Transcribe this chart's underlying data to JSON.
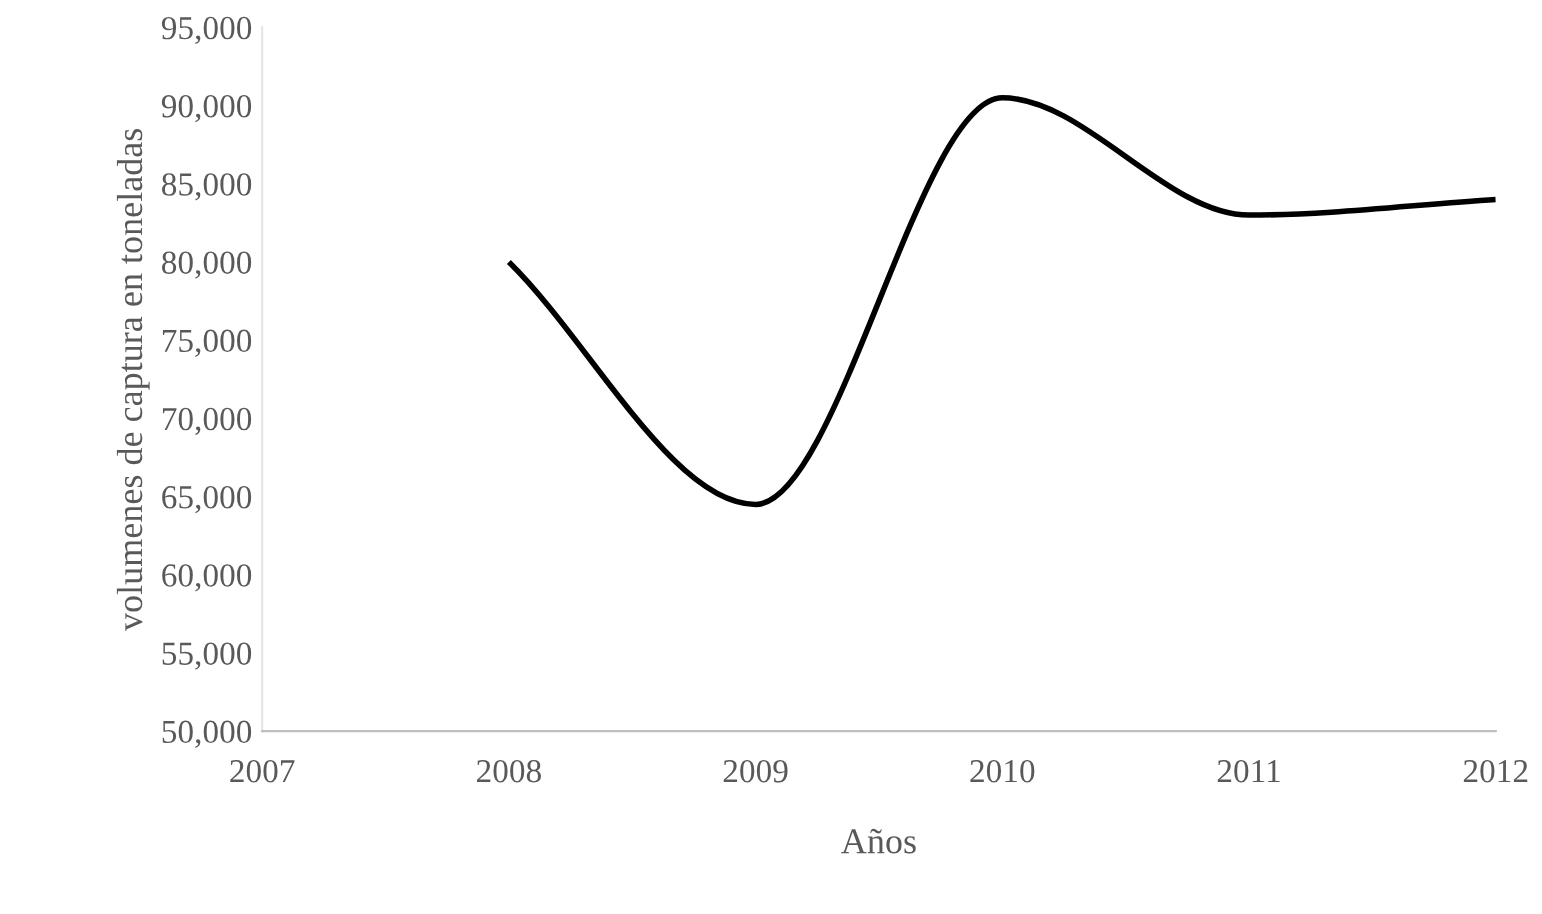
{
  "chart_data": {
    "type": "line",
    "xlabel": "Años",
    "ylabel": "volumenes de captura en toneladas",
    "x": [
      2008,
      2009,
      2010,
      2011,
      2012
    ],
    "series": [
      {
        "color": "#000000",
        "values": [
          80000,
          64500,
          90500,
          83000,
          84000
        ]
      }
    ],
    "xlim": [
      2007,
      2012
    ],
    "xticks": [
      2007,
      2008,
      2009,
      2010,
      2011,
      2012
    ],
    "ylim": [
      50000,
      95000
    ],
    "yticks": [
      {
        "value": 50000,
        "label": "50,000"
      },
      {
        "value": 55000,
        "label": "55,000"
      },
      {
        "value": 60000,
        "label": "60,000"
      },
      {
        "value": 65000,
        "label": "65,000"
      },
      {
        "value": 70000,
        "label": "70,000"
      },
      {
        "value": 75000,
        "label": "75,000"
      },
      {
        "value": 80000,
        "label": "80,000"
      },
      {
        "value": 85000,
        "label": "85,000"
      },
      {
        "value": 90000,
        "label": "90,000"
      },
      {
        "value": 95000,
        "label": "95,000"
      }
    ],
    "grid": false,
    "legend": false,
    "marker": "none",
    "line_style": "solid"
  }
}
